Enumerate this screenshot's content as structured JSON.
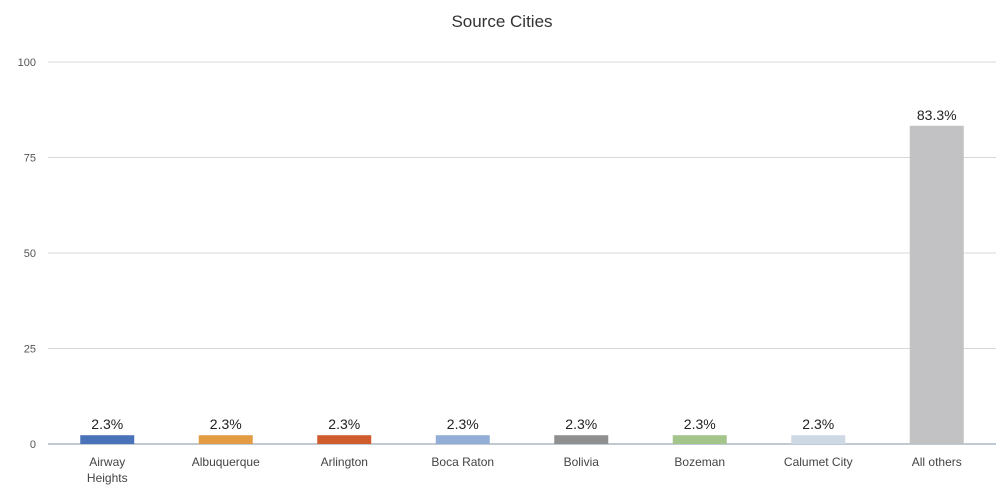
{
  "chart_data": {
    "type": "bar",
    "title": "Source Cities",
    "xlabel": "",
    "ylabel": "",
    "ylim": [
      0,
      100
    ],
    "yticks": [
      "0",
      "25",
      "50",
      "75",
      "100"
    ],
    "ytick_values": [
      0,
      25,
      50,
      75,
      100
    ],
    "categories": [
      "Airway Heights",
      "Albuquerque",
      "Arlington",
      "Boca Raton",
      "Bolivia",
      "Bozeman",
      "Calumet City",
      "All others"
    ],
    "category_lines": [
      [
        "Airway",
        "Heights"
      ],
      [
        "Albuquerque"
      ],
      [
        "Arlington"
      ],
      [
        "Boca Raton"
      ],
      [
        "Bolivia"
      ],
      [
        "Bozeman"
      ],
      [
        "Calumet City"
      ],
      [
        "All others"
      ]
    ],
    "values": [
      2.3,
      2.3,
      2.3,
      2.3,
      2.3,
      2.3,
      2.3,
      83.3
    ],
    "data_labels": [
      "2.3%",
      "2.3%",
      "2.3%",
      "2.3%",
      "2.3%",
      "2.3%",
      "2.3%",
      "83.3%"
    ],
    "colors": [
      "#4a72b8",
      "#e39b44",
      "#d05c2e",
      "#92aed6",
      "#8f8f8f",
      "#a3c48a",
      "#cfd9e6",
      "#c2c2c4"
    ],
    "grid": true,
    "legend": "none"
  }
}
